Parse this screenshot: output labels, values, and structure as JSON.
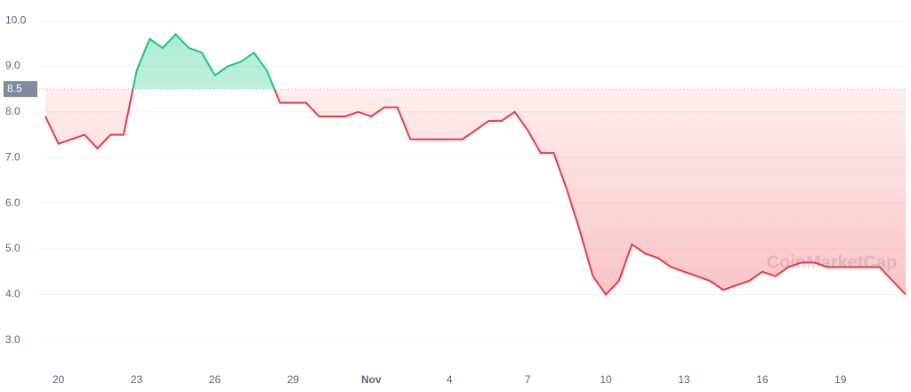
{
  "chart_data": {
    "type": "line",
    "watermark": "CoinMarketCap",
    "categories": [
      null,
      "20",
      null,
      null,
      null,
      null,
      null,
      "23",
      null,
      null,
      null,
      null,
      null,
      "26",
      null,
      null,
      null,
      null,
      null,
      "29",
      null,
      null,
      null,
      null,
      null,
      "Nov",
      null,
      null,
      null,
      null,
      null,
      "4",
      null,
      null,
      null,
      null,
      null,
      "7",
      null,
      null,
      null,
      null,
      null,
      "10",
      null,
      null,
      null,
      null,
      null,
      "13",
      null,
      null,
      null,
      null,
      null,
      "16",
      null,
      null,
      null,
      null,
      null,
      "19",
      null,
      null,
      null,
      null,
      null
    ],
    "values": [
      7.9,
      7.3,
      7.4,
      7.5,
      7.2,
      7.5,
      7.5,
      8.9,
      9.6,
      9.4,
      9.7,
      9.4,
      9.3,
      8.8,
      9.0,
      9.1,
      9.3,
      8.9,
      8.2,
      8.2,
      8.2,
      7.9,
      7.9,
      7.9,
      8.0,
      7.9,
      8.1,
      8.1,
      7.4,
      7.4,
      7.4,
      7.4,
      7.4,
      7.6,
      7.8,
      7.8,
      8.0,
      7.6,
      7.1,
      7.1,
      6.3,
      5.4,
      4.4,
      4.0,
      4.3,
      5.1,
      4.9,
      4.8,
      4.6,
      4.5,
      4.4,
      4.3,
      4.1,
      4.2,
      4.3,
      4.5,
      4.4,
      4.6,
      4.7,
      4.7,
      4.6,
      4.6,
      4.6,
      4.6,
      4.6,
      4.3,
      4.0
    ],
    "baseline": 8.5,
    "up_color": "#16c784",
    "down_color": "#ea3943",
    "ylim": [
      2.45,
      10.45
    ],
    "yticks": [
      {
        "value": 3,
        "label": "3.0"
      },
      {
        "value": 4,
        "label": "4.0"
      },
      {
        "value": 5,
        "label": "5.0"
      },
      {
        "value": 6,
        "label": "6.0"
      },
      {
        "value": 7,
        "label": "7.0"
      },
      {
        "value": 8,
        "label": "8.0"
      },
      {
        "value": 9,
        "label": "9.0"
      },
      {
        "value": 10,
        "label": "10.0"
      }
    ],
    "grid": true
  }
}
